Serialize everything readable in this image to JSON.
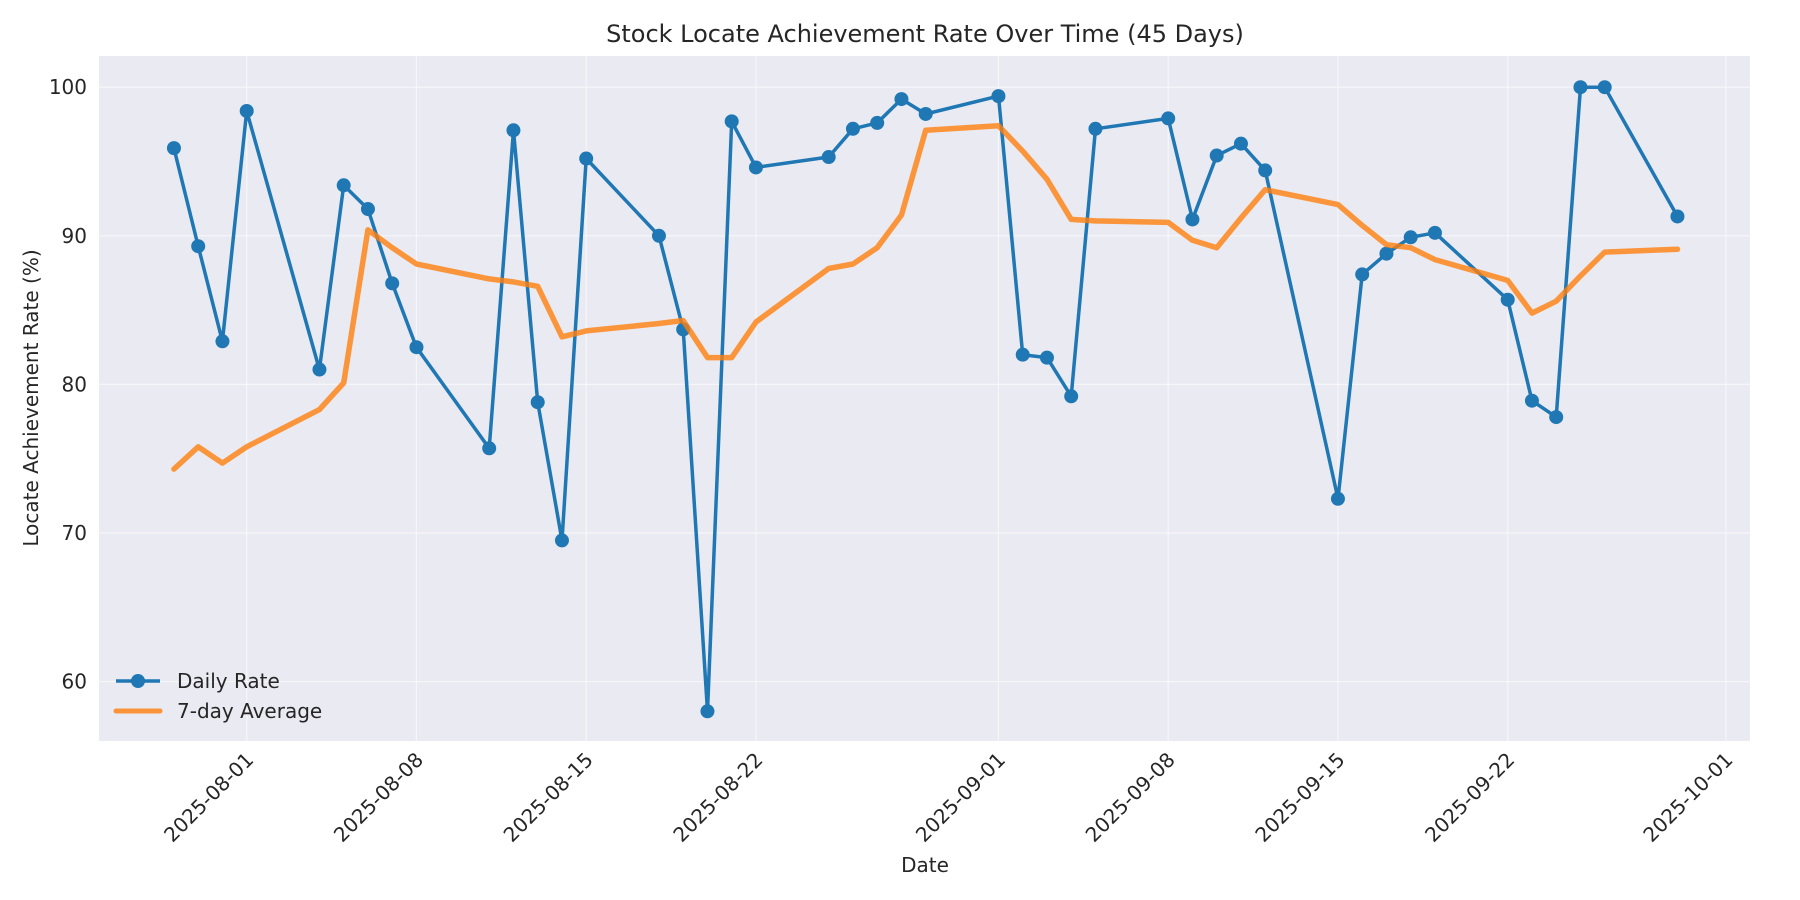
{
  "chart_data": {
    "type": "line",
    "title": "Stock Locate Achievement Rate Over Time (45 Days)",
    "xlabel": "Date",
    "ylabel": "Locate Achievement Rate (%)",
    "ylim": [
      56.0,
      102.1
    ],
    "yticks": [
      60,
      70,
      80,
      90,
      100
    ],
    "xlim": [
      "2025-07-25.9",
      "2025-10-01.9"
    ],
    "xticks": [
      "2025-08-01",
      "2025-08-08",
      "2025-08-15",
      "2025-08-22",
      "2025-09-01",
      "2025-09-08",
      "2025-09-15",
      "2025-09-22",
      "2025-10-01"
    ],
    "grid": true,
    "legend_position": "lower left",
    "x": [
      "2025-07-29",
      "2025-07-30",
      "2025-07-31",
      "2025-08-01",
      "2025-08-04",
      "2025-08-05",
      "2025-08-06",
      "2025-08-07",
      "2025-08-08",
      "2025-08-11",
      "2025-08-12",
      "2025-08-13",
      "2025-08-14",
      "2025-08-15",
      "2025-08-18",
      "2025-08-19",
      "2025-08-20",
      "2025-08-21",
      "2025-08-22",
      "2025-08-25",
      "2025-08-26",
      "2025-08-27",
      "2025-08-28",
      "2025-08-29",
      "2025-09-01",
      "2025-09-02",
      "2025-09-03",
      "2025-09-04",
      "2025-09-05",
      "2025-09-08",
      "2025-09-09",
      "2025-09-10",
      "2025-09-11",
      "2025-09-12",
      "2025-09-15",
      "2025-09-16",
      "2025-09-17",
      "2025-09-18",
      "2025-09-19",
      "2025-09-22",
      "2025-09-23",
      "2025-09-24",
      "2025-09-25",
      "2025-09-26",
      "2025-09-29"
    ],
    "series": [
      {
        "name": "Daily Rate",
        "color": "#1f77b4",
        "marker": "circle",
        "values": [
          95.9,
          89.3,
          82.9,
          98.4,
          81.0,
          93.4,
          91.8,
          86.8,
          82.5,
          75.7,
          97.1,
          78.8,
          69.5,
          95.2,
          90.0,
          83.7,
          58.0,
          97.7,
          94.6,
          95.3,
          97.2,
          97.6,
          99.2,
          98.2,
          99.4,
          82.0,
          81.8,
          79.2,
          97.2,
          97.9,
          91.1,
          95.4,
          96.2,
          94.4,
          72.3,
          87.4,
          88.8,
          89.9,
          90.2,
          85.7,
          78.9,
          77.8,
          100.0,
          100.0,
          91.3
        ]
      },
      {
        "name": "7-day Average",
        "color": "#ff7f0e",
        "marker": "none",
        "values": [
          74.3,
          75.8,
          74.7,
          75.8,
          78.3,
          80.1,
          90.4,
          89.2,
          88.1,
          87.1,
          86.9,
          86.6,
          83.2,
          83.6,
          84.1,
          84.3,
          81.8,
          81.8,
          84.2,
          87.8,
          88.1,
          89.2,
          91.4,
          97.1,
          97.4,
          95.7,
          93.8,
          91.1,
          91.0,
          90.9,
          89.7,
          89.2,
          91.2,
          93.1,
          92.1,
          90.7,
          89.4,
          89.2,
          88.4,
          87.0,
          84.8,
          85.6,
          87.3,
          88.9,
          89.1
        ]
      }
    ]
  },
  "legend": {
    "items": [
      {
        "label": "Daily Rate",
        "color": "#1f77b4"
      },
      {
        "label": "7-day Average",
        "color": "#ff7f0e"
      }
    ]
  },
  "colors": {
    "plot_background": "#eaeaf2",
    "grid": "#ffffff",
    "text": "#262626"
  }
}
